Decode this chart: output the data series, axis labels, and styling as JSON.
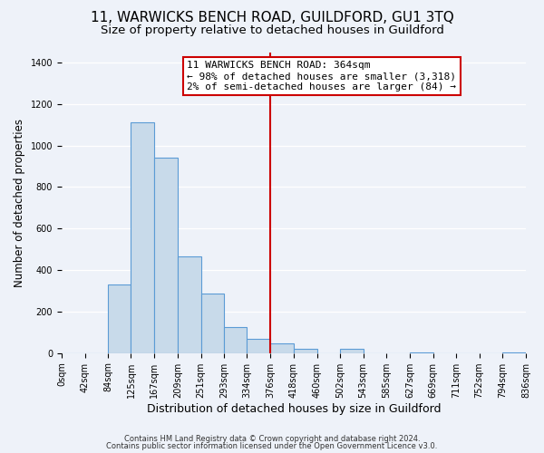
{
  "title": "11, WARWICKS BENCH ROAD, GUILDFORD, GU1 3TQ",
  "subtitle": "Size of property relative to detached houses in Guildford",
  "xlabel": "Distribution of detached houses by size in Guildford",
  "ylabel": "Number of detached properties",
  "footnote1": "Contains HM Land Registry data © Crown copyright and database right 2024.",
  "footnote2": "Contains public sector information licensed under the Open Government Licence v3.0.",
  "bin_edges": [
    0,
    42,
    84,
    125,
    167,
    209,
    251,
    293,
    334,
    376,
    418,
    460,
    502,
    543,
    585,
    627,
    669,
    711,
    752,
    794,
    836
  ],
  "bin_counts": [
    0,
    0,
    330,
    1110,
    940,
    465,
    285,
    125,
    70,
    48,
    20,
    0,
    22,
    0,
    0,
    5,
    0,
    0,
    0,
    3
  ],
  "bar_color": "#c8daea",
  "bar_edge_color": "#5b9bd5",
  "vline_x": 376,
  "vline_color": "#cc0000",
  "annotation_line1": "11 WARWICKS BENCH ROAD: 364sqm",
  "annotation_line2": "← 98% of detached houses are smaller (3,318)",
  "annotation_line3": "2% of semi-detached houses are larger (84) →",
  "ylim": [
    0,
    1450
  ],
  "yticks": [
    0,
    200,
    400,
    600,
    800,
    1000,
    1200,
    1400
  ],
  "bg_color": "#eef2f9",
  "grid_color": "#ffffff",
  "title_fontsize": 11,
  "subtitle_fontsize": 9.5,
  "xlabel_fontsize": 9,
  "ylabel_fontsize": 8.5,
  "footnote_fontsize": 6,
  "tick_fontsize": 7,
  "annotation_fontsize": 8
}
